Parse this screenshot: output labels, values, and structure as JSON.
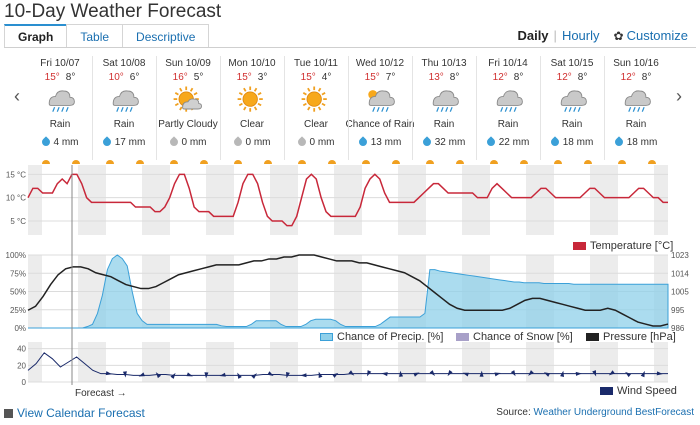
{
  "page": {
    "title": "10-Day Weather Forecast"
  },
  "tabs": [
    {
      "label": "Graph",
      "active": true
    },
    {
      "label": "Table",
      "active": false
    },
    {
      "label": "Descriptive",
      "active": false
    }
  ],
  "view": {
    "daily": "Daily",
    "hourly": "Hourly",
    "customize": "Customize"
  },
  "nav": {
    "prev": "‹",
    "next": "›"
  },
  "days": [
    {
      "date": "Fri 10/07",
      "hi": "15°",
      "lo": "8°",
      "icon": "rain-icon",
      "cond": "Rain",
      "precip": "4 mm",
      "drop": "blue"
    },
    {
      "date": "Sat 10/08",
      "hi": "10°",
      "lo": "6°",
      "icon": "rain-icon",
      "cond": "Rain",
      "precip": "17 mm",
      "drop": "blue"
    },
    {
      "date": "Sun 10/09",
      "hi": "16°",
      "lo": "5°",
      "icon": "partly-cloudy-icon",
      "cond": "Partly Cloudy",
      "precip": "0 mm",
      "drop": "gray"
    },
    {
      "date": "Mon 10/10",
      "hi": "15°",
      "lo": "3°",
      "icon": "sun-icon",
      "cond": "Clear",
      "precip": "0 mm",
      "drop": "gray"
    },
    {
      "date": "Tue 10/11",
      "hi": "15°",
      "lo": "4°",
      "icon": "sun-icon",
      "cond": "Clear",
      "precip": "0 mm",
      "drop": "gray"
    },
    {
      "date": "Wed 10/12",
      "hi": "15°",
      "lo": "7°",
      "icon": "chance-rain-icon",
      "cond": "Chance of Rain",
      "precip": "13 mm",
      "drop": "blue"
    },
    {
      "date": "Thu 10/13",
      "hi": "13°",
      "lo": "8°",
      "icon": "rain-icon",
      "cond": "Rain",
      "precip": "32 mm",
      "drop": "blue"
    },
    {
      "date": "Fri 10/14",
      "hi": "12°",
      "lo": "8°",
      "icon": "rain-icon",
      "cond": "Rain",
      "precip": "22 mm",
      "drop": "blue"
    },
    {
      "date": "Sat 10/15",
      "hi": "12°",
      "lo": "8°",
      "icon": "rain-icon",
      "cond": "Rain",
      "precip": "18 mm",
      "drop": "blue"
    },
    {
      "date": "Sun 10/16",
      "hi": "12°",
      "lo": "8°",
      "icon": "rain-icon",
      "cond": "Rain",
      "precip": "18 mm",
      "drop": "blue"
    }
  ],
  "colors": {
    "temperature": "#c8283a",
    "precip": "#8fd0ea",
    "precip_line": "#3ba0d8",
    "snow": "#a8a0c8",
    "pressure": "#222222",
    "wind": "#1a2a6a"
  },
  "chart_data": [
    {
      "type": "line",
      "ylabels": [
        "15 °C",
        "10 °C",
        "5 °C"
      ],
      "yticks": [
        15,
        10,
        5
      ],
      "ylim": [
        2,
        17
      ],
      "series": [
        {
          "name": "Temperature [°C]",
          "values": [
            10,
            12,
            12,
            11,
            11,
            11,
            13,
            14,
            13,
            15,
            15,
            13,
            10,
            9,
            9,
            9,
            9,
            9,
            9,
            9,
            9,
            9,
            8,
            8,
            8,
            8,
            7,
            7,
            8,
            10,
            13,
            15,
            15,
            12,
            8,
            7,
            7,
            7,
            6,
            6,
            6,
            6,
            6,
            9,
            13,
            15,
            15,
            13,
            9,
            6,
            5,
            5,
            5,
            4,
            4,
            6,
            10,
            14,
            15,
            14,
            10,
            7,
            6,
            6,
            6,
            6,
            6,
            6,
            8,
            12,
            14,
            15,
            14,
            11,
            9,
            9,
            9,
            9,
            9,
            9,
            10,
            11,
            12,
            13,
            13,
            12,
            11,
            11,
            11,
            11,
            11,
            11,
            10,
            10,
            10,
            12,
            13,
            12,
            11,
            10,
            10,
            10,
            10,
            10,
            11,
            12,
            12,
            11,
            10,
            10,
            10,
            10,
            10,
            10,
            11,
            12,
            12,
            11,
            10,
            10,
            10,
            10,
            10,
            10,
            11,
            12,
            12,
            11,
            10,
            10,
            9,
            9
          ]
        }
      ],
      "legend": "Temperature [°C]"
    },
    {
      "type": "area",
      "ylabels_left": [
        "100%",
        "75%",
        "50%",
        "25%",
        "0%"
      ],
      "ylabels_right": [
        "1023",
        "1014",
        "1005",
        "995",
        "986"
      ],
      "series": [
        {
          "name": "Chance of Precip. [%]",
          "values": [
            0,
            0,
            0,
            0,
            0,
            0,
            0,
            0,
            0,
            0,
            0,
            0,
            2,
            5,
            20,
            45,
            80,
            95,
            100,
            95,
            85,
            50,
            20,
            10,
            5,
            5,
            5,
            5,
            5,
            5,
            5,
            5,
            5,
            5,
            5,
            5,
            5,
            5,
            5,
            3,
            2,
            2,
            2,
            2,
            2,
            5,
            10,
            10,
            10,
            10,
            10,
            5,
            2,
            2,
            2,
            2,
            5,
            10,
            12,
            12,
            12,
            12,
            10,
            5,
            2,
            2,
            2,
            2,
            2,
            2,
            2,
            5,
            10,
            15,
            15,
            15,
            15,
            15,
            15,
            15,
            20,
            80,
            80,
            78,
            77,
            76,
            75,
            74,
            73,
            72,
            71,
            70,
            69,
            68,
            67,
            66,
            65,
            64,
            63,
            63,
            62,
            62,
            62,
            62,
            61,
            61,
            61,
            61,
            61,
            61,
            60,
            60,
            60,
            60,
            60,
            60,
            60,
            60,
            60,
            60,
            60,
            60,
            60,
            60,
            60,
            60,
            60,
            60,
            60,
            60
          ]
        },
        {
          "name": "Chance of Snow [%]",
          "values": []
        },
        {
          "name": "Pressure [hPa]",
          "values": [
            995,
            997,
            1002,
            1008,
            1013,
            1016,
            1017,
            1017,
            1016,
            1014,
            1013,
            1012,
            1010,
            1008,
            1007,
            1006,
            1006,
            1007,
            1009,
            1011,
            1013,
            1014,
            1015,
            1016,
            1017,
            1018,
            1018,
            1018,
            1018,
            1019,
            1020,
            1020,
            1021,
            1021,
            1022,
            1022,
            1023,
            1023,
            1023,
            1022,
            1021,
            1020,
            1020,
            1020,
            1019,
            1019,
            1018,
            1017,
            1016,
            1015,
            1014,
            1012,
            1010,
            1007,
            1004,
            1001,
            998,
            996,
            995,
            995,
            995,
            995,
            995,
            995,
            996,
            998,
            1000,
            1001,
            1001,
            1000,
            999,
            998,
            997,
            996,
            995,
            995,
            995,
            996,
            995,
            993,
            991,
            989,
            988,
            987,
            987,
            988
          ]
        }
      ]
    },
    {
      "type": "line",
      "ylabels": [
        "40",
        "20",
        "0"
      ],
      "yticks": [
        40,
        20,
        0
      ],
      "ylim": [
        0,
        48
      ],
      "series": [
        {
          "name": "Wind Speed",
          "values": [
            14,
            22,
            35,
            28,
            18,
            24,
            30,
            22,
            14,
            10,
            10,
            9,
            9,
            8,
            8,
            8,
            9,
            9,
            8,
            8,
            8,
            8,
            8,
            8,
            8,
            8,
            8,
            8,
            8,
            9,
            9,
            9,
            8,
            8,
            8,
            8,
            9,
            9,
            9,
            9,
            10,
            10,
            10,
            10,
            10,
            10,
            10,
            10,
            10,
            10,
            10,
            10,
            10,
            10,
            10,
            10,
            10,
            10,
            10,
            10,
            10,
            10,
            10,
            10,
            10,
            10,
            10,
            10,
            10,
            10,
            10,
            10,
            10,
            10,
            10,
            10,
            10,
            10,
            10,
            10
          ]
        }
      ]
    }
  ],
  "legends": {
    "temperature": "Temperature [°C]",
    "precip": "Chance of Precip. [%]",
    "snow": "Chance of Snow [%]",
    "pressure": "Pressure [hPa]",
    "wind": "Wind Speed"
  },
  "footer": {
    "forecast": "Forecast →",
    "calendar": "View Calendar Forecast",
    "source_prefix": "Source:",
    "source_link": "Weather Underground BestForecast"
  }
}
